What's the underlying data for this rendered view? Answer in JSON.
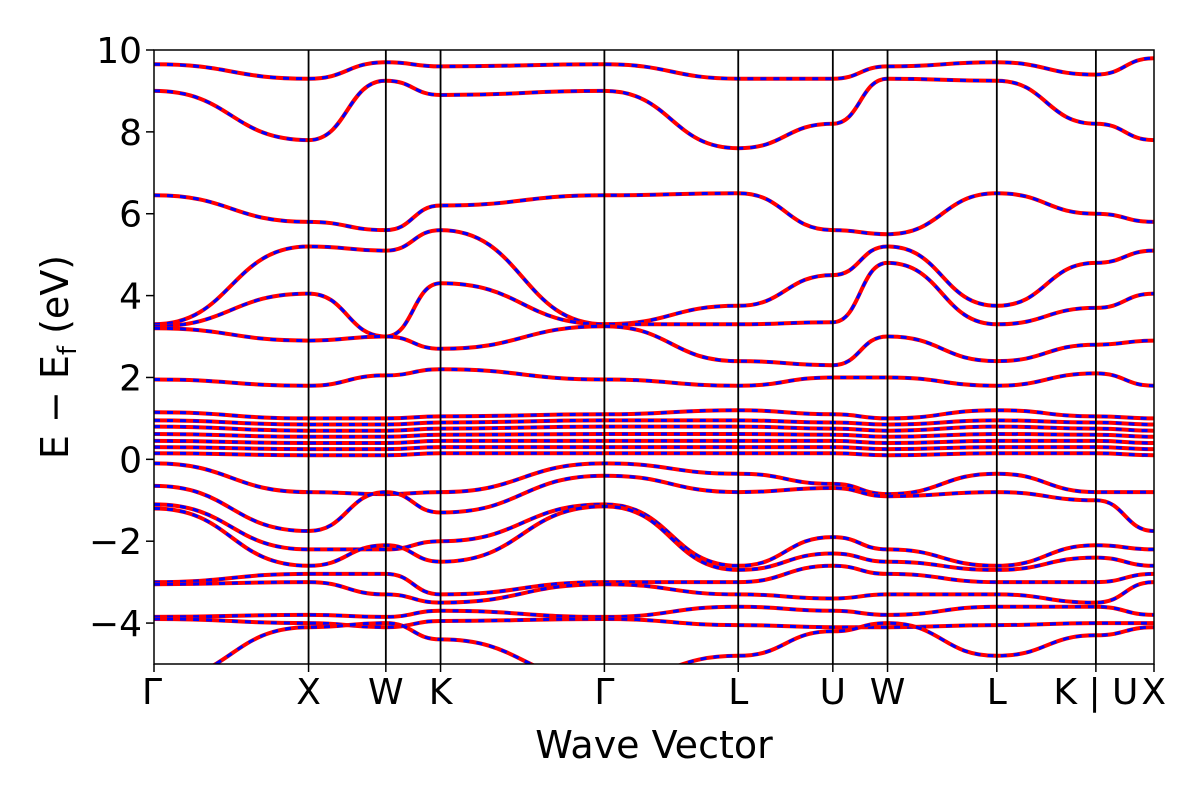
{
  "chart_data": {
    "type": "line",
    "title": "",
    "xlabel": "Wave Vector",
    "ylabel": "E − E_f (eV)",
    "ylabel_main": "E − E",
    "ylabel_sub": "f",
    "ylabel_unit": " (eV)",
    "ylim": [
      -5,
      10
    ],
    "yticks": [
      -4,
      -2,
      0,
      2,
      4,
      6,
      8,
      10
    ],
    "ytick_labels": [
      "−4",
      "−2",
      "0",
      "2",
      "4",
      "6",
      "8",
      "10"
    ],
    "xlim": [
      0,
      6.47
    ],
    "kpoints": [
      {
        "label": "Γ",
        "x": 0.0
      },
      {
        "label": "X",
        "x": 1.0
      },
      {
        "label": "W",
        "x": 1.5
      },
      {
        "label": "K",
        "x": 1.854
      },
      {
        "label": "Γ",
        "x": 2.914
      },
      {
        "label": "L",
        "x": 3.78
      },
      {
        "label": "U",
        "x": 4.392
      },
      {
        "label": "W",
        "x": 4.746
      },
      {
        "label": "L",
        "x": 5.453
      },
      {
        "label": "K | U",
        "x": 6.094
      },
      {
        "label": "X",
        "x": 6.47
      }
    ],
    "colors": {
      "series_a": "#ff0000",
      "series_b": "#0000ff"
    },
    "series": [
      {
        "style": "solid"
      },
      {
        "style": "dashed"
      }
    ],
    "bands": [
      {
        "y": [
          9.65,
          9.3,
          9.7,
          9.6,
          9.65,
          9.3,
          9.3,
          9.6,
          9.7,
          9.4,
          9.8
        ]
      },
      {
        "y": [
          9.0,
          7.8,
          9.25,
          8.9,
          9.0,
          7.6,
          8.2,
          9.3,
          9.25,
          8.2,
          7.8
        ]
      },
      {
        "y": [
          6.45,
          5.8,
          5.6,
          6.2,
          6.45,
          6.5,
          5.6,
          5.5,
          6.5,
          6.0,
          5.8
        ]
      },
      {
        "y": [
          3.3,
          5.2,
          5.1,
          5.6,
          3.3,
          3.75,
          4.5,
          5.2,
          3.75,
          4.8,
          5.1
        ]
      },
      {
        "y": [
          3.25,
          4.05,
          3.0,
          4.3,
          3.3,
          3.3,
          3.35,
          4.8,
          3.3,
          3.7,
          4.05
        ]
      },
      {
        "y": [
          3.2,
          2.9,
          3.0,
          2.7,
          3.25,
          2.4,
          2.3,
          3.0,
          2.4,
          2.8,
          2.9
        ]
      },
      {
        "y": [
          1.95,
          1.8,
          2.05,
          2.2,
          1.95,
          1.8,
          2.0,
          2.0,
          1.8,
          2.1,
          1.8
        ]
      },
      {
        "y": [
          1.15,
          1.0,
          1.0,
          1.05,
          1.1,
          1.2,
          1.1,
          1.0,
          1.2,
          1.05,
          1.0
        ]
      },
      {
        "y": [
          0.95,
          0.85,
          0.85,
          0.9,
          0.95,
          0.95,
          0.9,
          0.85,
          0.95,
          0.9,
          0.85
        ]
      },
      {
        "y": [
          0.8,
          0.7,
          0.7,
          0.75,
          0.8,
          0.8,
          0.75,
          0.7,
          0.8,
          0.75,
          0.7
        ]
      },
      {
        "y": [
          0.62,
          0.55,
          0.55,
          0.6,
          0.62,
          0.62,
          0.6,
          0.55,
          0.62,
          0.6,
          0.55
        ]
      },
      {
        "y": [
          0.45,
          0.4,
          0.4,
          0.45,
          0.45,
          0.45,
          0.45,
          0.4,
          0.45,
          0.45,
          0.4
        ]
      },
      {
        "y": [
          0.3,
          0.25,
          0.25,
          0.3,
          0.3,
          0.3,
          0.3,
          0.25,
          0.3,
          0.3,
          0.25
        ]
      },
      {
        "y": [
          0.15,
          0.1,
          0.1,
          0.15,
          0.15,
          0.15,
          0.15,
          0.1,
          0.15,
          0.15,
          0.1
        ]
      },
      {
        "y": [
          -0.1,
          -0.8,
          -0.85,
          -0.8,
          -0.1,
          -0.35,
          -0.6,
          -0.85,
          -0.35,
          -0.8,
          -0.8
        ]
      },
      {
        "y": [
          -0.65,
          -1.75,
          -0.8,
          -1.3,
          -0.4,
          -0.8,
          -0.7,
          -0.9,
          -0.8,
          -1.0,
          -1.75
        ]
      },
      {
        "y": [
          -1.1,
          -2.2,
          -2.2,
          -2.0,
          -1.1,
          -2.6,
          -1.9,
          -2.2,
          -2.6,
          -2.1,
          -2.2
        ]
      },
      {
        "y": [
          -1.2,
          -2.6,
          -2.1,
          -2.5,
          -1.15,
          -2.7,
          -2.3,
          -2.5,
          -2.7,
          -2.4,
          -2.6
        ]
      },
      {
        "y": [
          -3.0,
          -2.8,
          -2.8,
          -3.3,
          -3.0,
          -3.0,
          -2.6,
          -2.8,
          -3.0,
          -3.0,
          -2.8
        ]
      },
      {
        "y": [
          -3.05,
          -3.0,
          -3.3,
          -3.5,
          -3.05,
          -3.3,
          -3.4,
          -3.3,
          -3.3,
          -3.5,
          -3.0
        ]
      },
      {
        "y": [
          -3.85,
          -3.8,
          -3.85,
          -3.7,
          -3.85,
          -3.6,
          -3.7,
          -3.8,
          -3.6,
          -3.6,
          -3.8
        ]
      },
      {
        "y": [
          -3.9,
          -4.0,
          -4.1,
          -3.95,
          -3.9,
          -4.05,
          -4.1,
          -4.1,
          -4.05,
          -4.0,
          -4.0
        ]
      },
      {
        "y": [
          -5.4,
          -4.1,
          -4.0,
          -4.4,
          -5.4,
          -4.8,
          -4.2,
          -4.0,
          -4.8,
          -4.3,
          -4.1
        ]
      }
    ]
  }
}
